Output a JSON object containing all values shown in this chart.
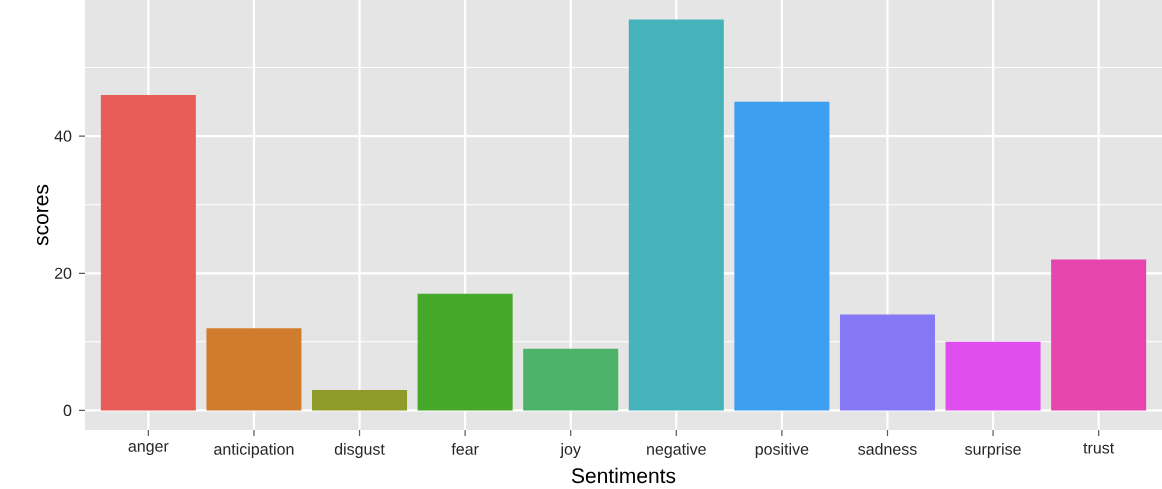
{
  "chart_data": {
    "type": "bar",
    "xlabel": "Sentiments",
    "ylabel": "scores",
    "categories": [
      "anger",
      "anticipation",
      "disgust",
      "fear",
      "joy",
      "negative",
      "positive",
      "sadness",
      "surprise",
      "trust"
    ],
    "values": [
      46,
      12,
      3,
      17,
      9,
      57,
      45,
      14,
      10,
      22
    ],
    "colors": [
      "#e85d58",
      "#cf7d2c",
      "#909a28",
      "#46a829",
      "#4cb36a",
      "#45b4ba",
      "#3c9ff0",
      "#8677f5",
      "#e04ef0",
      "#e545ac"
    ],
    "ylim": [
      -2.85,
      59.85
    ],
    "yticks": [
      0,
      {
        "value": 10,
        "label": null
      },
      20,
      {
        "value": 30,
        "label": null
      },
      40,
      {
        "value": 50,
        "label": null
      }
    ],
    "grid": true
  }
}
